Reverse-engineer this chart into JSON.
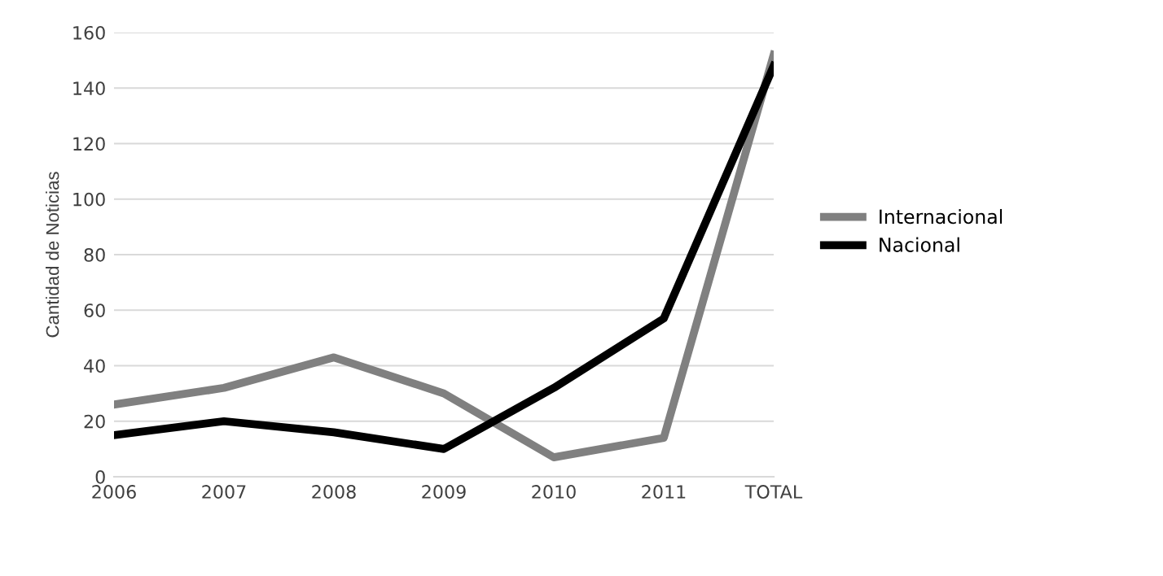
{
  "chart_data": {
    "type": "line",
    "ylabel": "Cantidad de Noticias",
    "categories": [
      "2006",
      "2007",
      "2008",
      "2009",
      "2010",
      "2011",
      "TOTAL"
    ],
    "series": [
      {
        "name": "Internacional",
        "color": "#808080",
        "values": [
          26,
          32,
          43,
          30,
          7,
          14,
          152
        ]
      },
      {
        "name": "Nacional",
        "color": "#000000",
        "values": [
          15,
          20,
          16,
          10,
          32,
          57,
          148
        ]
      }
    ],
    "ylim": [
      0,
      160
    ],
    "yticks": [
      0,
      20,
      40,
      60,
      80,
      100,
      120,
      140,
      160
    ],
    "grid": "y",
    "legend": "right",
    "line_style": "solid",
    "marker": "none"
  }
}
